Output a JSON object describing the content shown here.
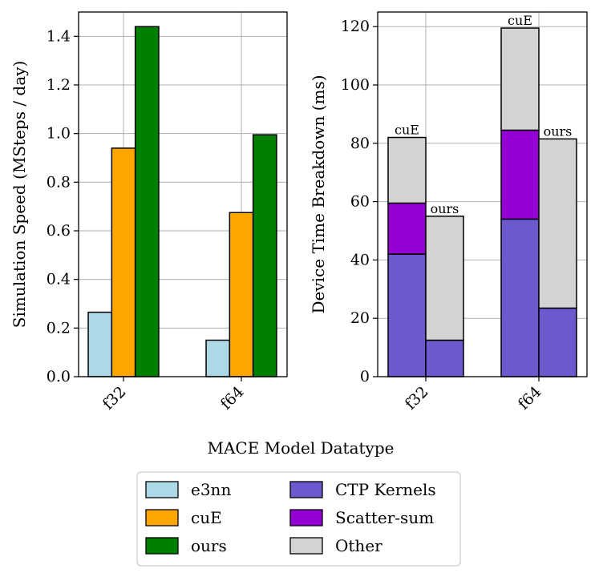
{
  "chart_data": [
    {
      "type": "bar",
      "categories": [
        "f32",
        "f64"
      ],
      "series": [
        {
          "name": "e3nn",
          "values": [
            0.265,
            0.15
          ],
          "color": "#add8e6"
        },
        {
          "name": "cuE",
          "values": [
            0.94,
            0.675
          ],
          "color": "#ffa500"
        },
        {
          "name": "ours",
          "values": [
            1.44,
            0.995
          ],
          "color": "#008000"
        }
      ],
      "ylabel": "Simulation Speed (MSteps / day)",
      "ylim": [
        0,
        1.5
      ],
      "yticks": [
        "0.0",
        "0.2",
        "0.4",
        "0.6",
        "0.8",
        "1.0",
        "1.2",
        "1.4"
      ],
      "grid": true
    },
    {
      "type": "bar",
      "stacked": true,
      "categories": [
        "f32",
        "f64"
      ],
      "groups": [
        "cuE",
        "ours"
      ],
      "series": [
        {
          "name": "CTP Kernels",
          "values": {
            "cuE": [
              42,
              54
            ],
            "ours": [
              12.5,
              23.5
            ]
          },
          "color": "#6a5acd"
        },
        {
          "name": "Scatter-sum",
          "values": {
            "cuE": [
              17.5,
              30.5
            ],
            "ours": [
              0,
              0
            ]
          },
          "color": "#9400d3"
        },
        {
          "name": "Other",
          "values": {
            "cuE": [
              22.5,
              35
            ],
            "ours": [
              42.5,
              58
            ]
          },
          "color": "#d3d3d3"
        }
      ],
      "bar_labels": [
        "cuE",
        "ours",
        "cuE",
        "ours"
      ],
      "ylabel": "Device Time Breakdown (ms)",
      "ylim": [
        0,
        125
      ],
      "yticks": [
        "0",
        "20",
        "40",
        "60",
        "80",
        "100",
        "120"
      ],
      "grid": true
    }
  ],
  "xlabel": "MACE Model Datatype",
  "legend": {
    "placement": "bottom-center",
    "entries": [
      {
        "name": "e3nn",
        "color": "#add8e6"
      },
      {
        "name": "cuE",
        "color": "#ffa500"
      },
      {
        "name": "ours",
        "color": "#008000"
      },
      {
        "name": "CTP Kernels",
        "color": "#6a5acd"
      },
      {
        "name": "Scatter-sum",
        "color": "#9400d3"
      },
      {
        "name": "Other",
        "color": "#d3d3d3"
      }
    ]
  }
}
